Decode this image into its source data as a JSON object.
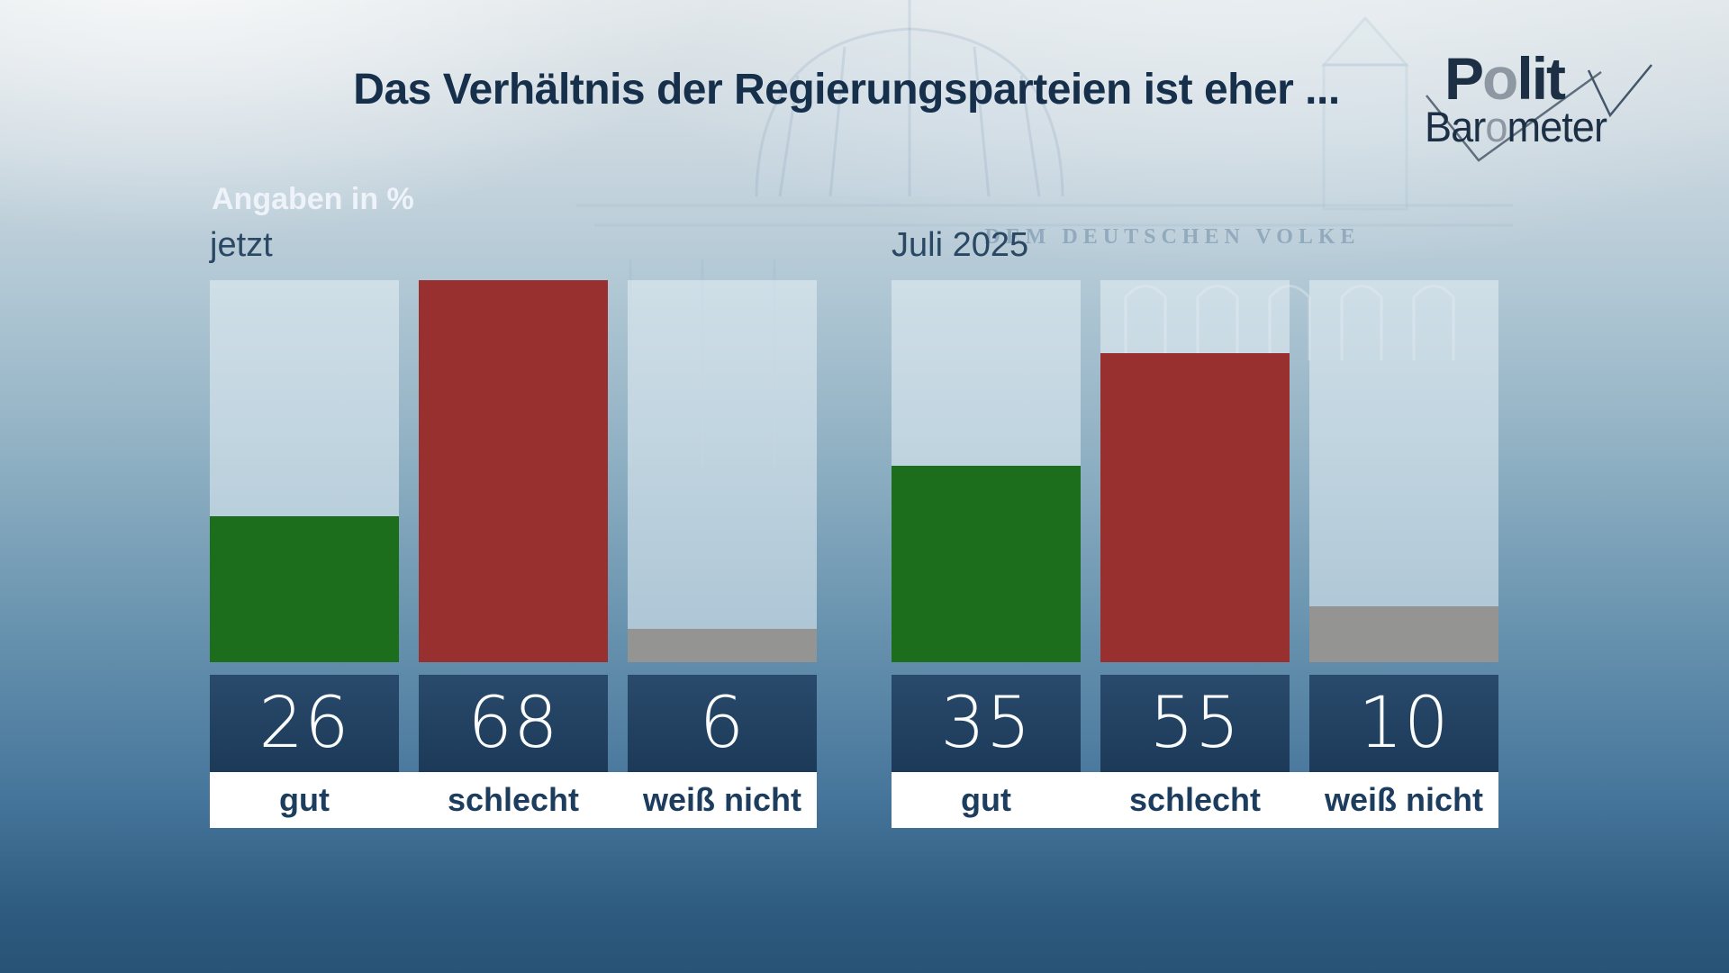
{
  "title": "Das Verhältnis der Regierungsparteien ist eher ...",
  "subtitle": "Angaben in %",
  "logo": {
    "line1_parts": [
      "P",
      "o",
      "lit"
    ],
    "line2_parts": [
      "Bar",
      "o",
      "meter"
    ]
  },
  "background": {
    "inscription": "DEM DEUTSCHEN VOLKE"
  },
  "chart_data": [
    {
      "type": "bar",
      "title": "jetzt",
      "categories": [
        "gut",
        "schlecht",
        "weiß nicht"
      ],
      "values": [
        26,
        68,
        6
      ],
      "unit": "%",
      "ylim": [
        0,
        68
      ],
      "bar_colors": [
        "#1c6e1c",
        "#983030",
        "#949492"
      ],
      "grid": false,
      "legend": false,
      "value_label_position": "below-bars"
    },
    {
      "type": "bar",
      "title": "Juli 2025",
      "categories": [
        "gut",
        "schlecht",
        "weiß nicht"
      ],
      "values": [
        35,
        55,
        10
      ],
      "unit": "%",
      "ylim": [
        0,
        68
      ],
      "bar_colors": [
        "#1c6e1c",
        "#983030",
        "#949492"
      ],
      "grid": false,
      "legend": false,
      "value_label_position": "below-bars"
    }
  ],
  "colors": {
    "title_text": "#16304b",
    "subtitle_text": "#edf3f8",
    "period_label_text": "#2a4763",
    "value_box_bg": "#1f3d5e",
    "value_text": "#fafcfd",
    "category_strip_bg": "#ffffff",
    "category_text": "#1d3d5f",
    "bar_green": "#1c6e1c",
    "bar_red": "#983030",
    "bar_gray": "#949492",
    "logo_text": "#1c2f45",
    "logo_accent": "#8d98a2",
    "background_bottom": "#285377"
  }
}
